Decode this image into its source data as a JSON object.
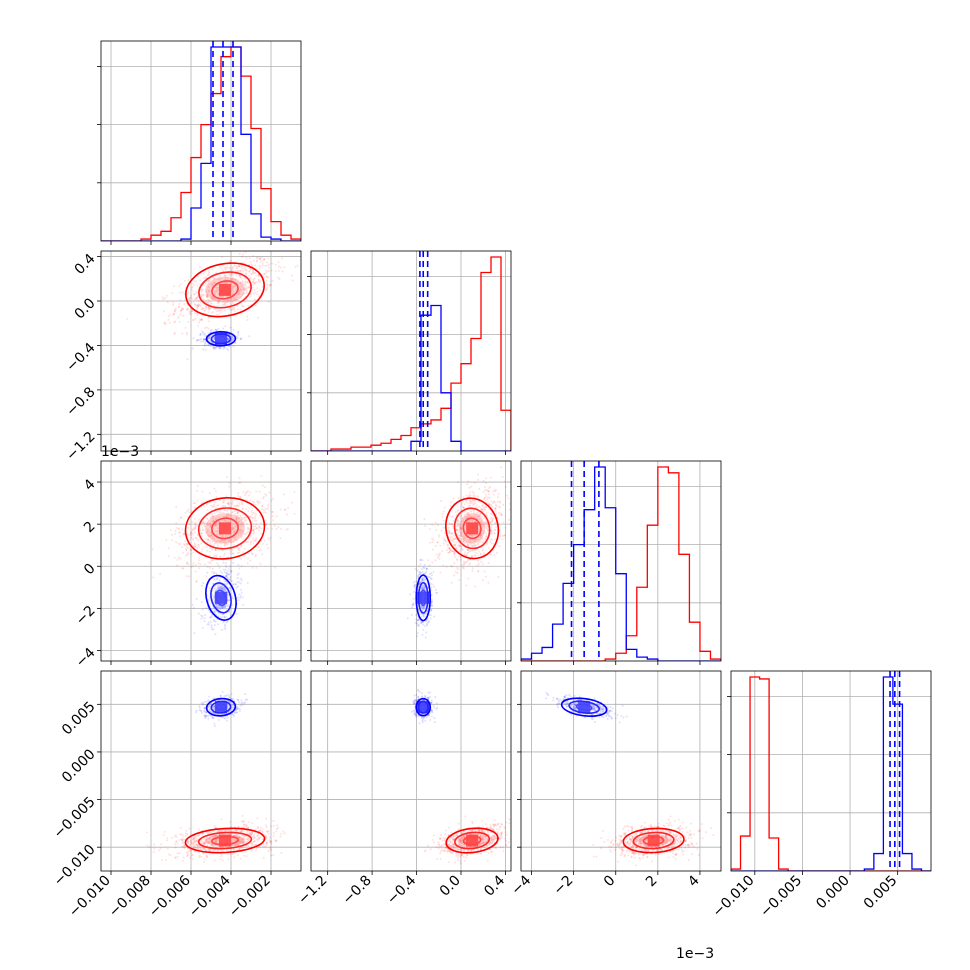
{
  "chart_data": {
    "type": "corner",
    "colors": {
      "red": "#ff0000",
      "blue": "#0000ff",
      "grid": "#b0b0b0",
      "frame": "#000000"
    },
    "grid": true,
    "num_params": 4,
    "params": [
      {
        "ticks": [
          -0.01,
          -0.008,
          -0.006,
          -0.004,
          -0.002
        ],
        "tick_labels": [
          "−0.010",
          "−0.008",
          "−0.006",
          "−0.004",
          "−0.002"
        ],
        "lim": [
          -0.0105,
          -0.0005
        ],
        "offset_label": ""
      },
      {
        "ticks": [
          -1.2,
          -0.8,
          -0.4,
          0.0,
          0.4
        ],
        "tick_labels": [
          "−1.2",
          "−0.8",
          "−0.4",
          "0.0",
          "0.4"
        ],
        "lim": [
          -1.35,
          0.45
        ],
        "offset_label": ""
      },
      {
        "ticks": [
          -4,
          -2,
          0,
          2,
          4
        ],
        "tick_labels": [
          "−4",
          "−2",
          "0",
          "2",
          "4"
        ],
        "lim": [
          -4.5,
          5.0
        ],
        "offset_label": "1e−3"
      },
      {
        "ticks": [
          -0.01,
          -0.005,
          0.0,
          0.005
        ],
        "tick_labels": [
          "−0.010",
          "−0.005",
          "0.000",
          "0.005"
        ],
        "lim": [
          -0.0125,
          0.0085
        ],
        "offset_label": ""
      }
    ],
    "series": [
      {
        "color": "red",
        "means": [
          -0.0043,
          0.1,
          1.8,
          -0.0093
        ],
        "sds": [
          0.0011,
          0.13,
          0.8,
          0.0007
        ]
      },
      {
        "color": "blue",
        "means": [
          -0.0045,
          -0.34,
          -1.5,
          0.0047
        ],
        "sds": [
          0.0004,
          0.035,
          0.6,
          0.0005
        ]
      }
    ],
    "histograms": [
      {
        "edges": [
          -0.0105,
          -0.01,
          -0.0095,
          -0.009,
          -0.0085,
          -0.008,
          -0.0075,
          -0.007,
          -0.0065,
          -0.006,
          -0.0055,
          -0.005,
          -0.0045,
          -0.004,
          -0.0035,
          -0.003,
          -0.0025,
          -0.002,
          -0.0015,
          -0.001,
          -0.0005
        ],
        "red": [
          0,
          0,
          0,
          0,
          0.01,
          0.03,
          0.05,
          0.12,
          0.25,
          0.43,
          0.6,
          0.76,
          0.95,
          1.0,
          0.85,
          0.58,
          0.27,
          0.1,
          0.03,
          0.01
        ],
        "blue": [
          0,
          0,
          0,
          0,
          0,
          0,
          0,
          0,
          0.01,
          0.17,
          0.4,
          1.0,
          1.0,
          1.0,
          0.55,
          0.14,
          0.02,
          0.01,
          0,
          0
        ],
        "blue_quantiles": [
          -0.0049,
          -0.0044,
          -0.0039
        ]
      },
      {
        "edges": [
          -1.35,
          -1.26,
          -1.17,
          -1.08,
          -0.99,
          -0.9,
          -0.81,
          -0.72,
          -0.63,
          -0.54,
          -0.45,
          -0.36,
          -0.27,
          -0.18,
          -0.09,
          0.0,
          0.09,
          0.18,
          0.27,
          0.36,
          0.45
        ],
        "red": [
          0,
          0,
          0.01,
          0.01,
          0.02,
          0.02,
          0.03,
          0.04,
          0.06,
          0.08,
          0.12,
          0.14,
          0.16,
          0.22,
          0.35,
          0.45,
          0.58,
          0.92,
          1.0,
          0.21
        ],
        "blue": [
          0,
          0,
          0,
          0,
          0,
          0,
          0,
          0,
          0,
          0,
          0.05,
          0.7,
          0.75,
          0.3,
          0.05,
          0,
          0,
          0,
          0,
          0
        ],
        "blue_quantiles": [
          -0.37,
          -0.34,
          -0.3
        ]
      },
      {
        "edges": [
          -4.5,
          -4.0,
          -3.5,
          -3.0,
          -2.5,
          -2.0,
          -1.5,
          -1.0,
          -0.5,
          0.0,
          0.5,
          1.0,
          1.5,
          2.0,
          2.5,
          3.0,
          3.5,
          4.0,
          4.5,
          5.0
        ],
        "red": [
          0,
          0,
          0,
          0,
          0,
          0,
          0,
          0,
          0.01,
          0.04,
          0.13,
          0.38,
          0.7,
          1.0,
          0.97,
          0.55,
          0.2,
          0.05,
          0.01
        ],
        "blue": [
          0.01,
          0.04,
          0.07,
          0.19,
          0.4,
          0.6,
          0.78,
          1.0,
          0.79,
          0.45,
          0.06,
          0.02,
          0.01,
          0,
          0,
          0,
          0,
          0,
          0
        ],
        "blue_quantiles": [
          -2.1,
          -1.5,
          -0.8
        ]
      },
      {
        "edges": [
          -0.0125,
          -0.0115,
          -0.0105,
          -0.0095,
          -0.0085,
          -0.0075,
          -0.0065,
          -0.0055,
          -0.0045,
          -0.0035,
          -0.0025,
          -0.0015,
          -0.0005,
          0.0005,
          0.0015,
          0.0025,
          0.0035,
          0.0045,
          0.0055,
          0.0065,
          0.0075,
          0.0085
        ],
        "red": [
          0.01,
          0.18,
          1.0,
          0.99,
          0.17,
          0.01,
          0,
          0,
          0,
          0,
          0,
          0,
          0,
          0,
          0,
          0,
          0,
          0,
          0,
          0,
          0
        ],
        "blue": [
          0,
          0,
          0,
          0,
          0,
          0,
          0,
          0,
          0,
          0,
          0,
          0,
          0,
          0,
          0.01,
          0.09,
          1.0,
          0.86,
          0.09,
          0.01,
          0
        ],
        "blue_quantiles": [
          0.0042,
          0.0047,
          0.0052
        ]
      }
    ]
  }
}
